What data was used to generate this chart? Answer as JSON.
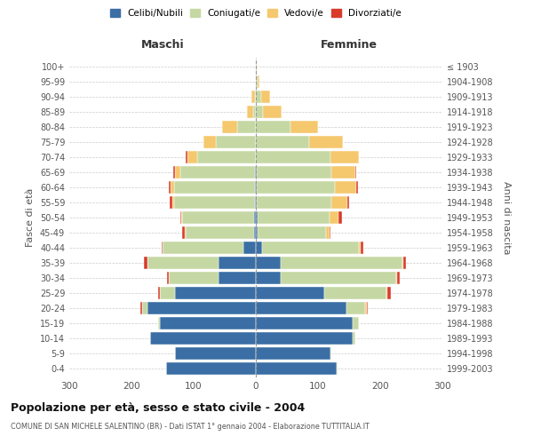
{
  "age_groups": [
    "0-4",
    "5-9",
    "10-14",
    "15-19",
    "20-24",
    "25-29",
    "30-34",
    "35-39",
    "40-44",
    "45-49",
    "50-54",
    "55-59",
    "60-64",
    "65-69",
    "70-74",
    "75-79",
    "80-84",
    "85-89",
    "90-94",
    "95-99",
    "100+"
  ],
  "birth_years": [
    "1999-2003",
    "1994-1998",
    "1989-1993",
    "1984-1988",
    "1979-1983",
    "1974-1978",
    "1969-1973",
    "1964-1968",
    "1959-1963",
    "1954-1958",
    "1949-1953",
    "1944-1948",
    "1939-1943",
    "1934-1938",
    "1929-1933",
    "1924-1928",
    "1919-1923",
    "1914-1918",
    "1909-1913",
    "1904-1908",
    "≤ 1903"
  ],
  "colors": {
    "celibi": "#3A6EA5",
    "coniugati": "#C5D8A4",
    "vedovi": "#F5C86E",
    "divorziati": "#D93B2B"
  },
  "males": {
    "celibi": [
      145,
      130,
      170,
      155,
      175,
      130,
      60,
      60,
      20,
      3,
      3,
      2,
      2,
      2,
      0,
      0,
      0,
      0,
      0,
      0,
      0
    ],
    "coniugati": [
      0,
      0,
      0,
      2,
      8,
      25,
      80,
      115,
      130,
      110,
      115,
      130,
      130,
      120,
      95,
      65,
      30,
      5,
      2,
      0,
      0
    ],
    "vedovi": [
      0,
      0,
      0,
      0,
      0,
      0,
      0,
      0,
      0,
      2,
      2,
      3,
      5,
      8,
      15,
      20,
      25,
      10,
      5,
      0,
      0
    ],
    "divorziati": [
      0,
      0,
      0,
      0,
      2,
      2,
      3,
      5,
      2,
      3,
      2,
      3,
      3,
      3,
      3,
      0,
      0,
      0,
      0,
      0,
      0
    ]
  },
  "females": {
    "nubili": [
      130,
      120,
      155,
      155,
      145,
      110,
      40,
      40,
      10,
      3,
      3,
      2,
      2,
      2,
      0,
      0,
      0,
      0,
      0,
      0,
      0
    ],
    "coniugati": [
      2,
      2,
      5,
      10,
      30,
      100,
      185,
      195,
      155,
      110,
      115,
      120,
      125,
      120,
      120,
      85,
      55,
      12,
      8,
      3,
      0
    ],
    "vedovi": [
      0,
      0,
      0,
      0,
      3,
      2,
      2,
      2,
      3,
      5,
      15,
      25,
      35,
      38,
      45,
      55,
      45,
      30,
      15,
      3,
      1
    ],
    "divorziati": [
      0,
      0,
      0,
      0,
      2,
      5,
      5,
      5,
      5,
      2,
      5,
      3,
      2,
      2,
      0,
      0,
      0,
      0,
      0,
      0,
      0
    ]
  },
  "title": "Popolazione per età, sesso e stato civile - 2004",
  "subtitle": "COMUNE DI SAN MICHELE SALENTINO (BR) - Dati ISTAT 1° gennaio 2004 - Elaborazione TUTTITALIA.IT",
  "xlabel_left": "Maschi",
  "xlabel_right": "Femmine",
  "ylabel_left": "Fasce di età",
  "ylabel_right": "Anni di nascita",
  "xlim": 300,
  "legend_labels": [
    "Celibi/Nubili",
    "Coniugati/e",
    "Vedovi/e",
    "Divorziati/e"
  ],
  "background_color": "#FFFFFF",
  "grid_color": "#CCCCCC"
}
